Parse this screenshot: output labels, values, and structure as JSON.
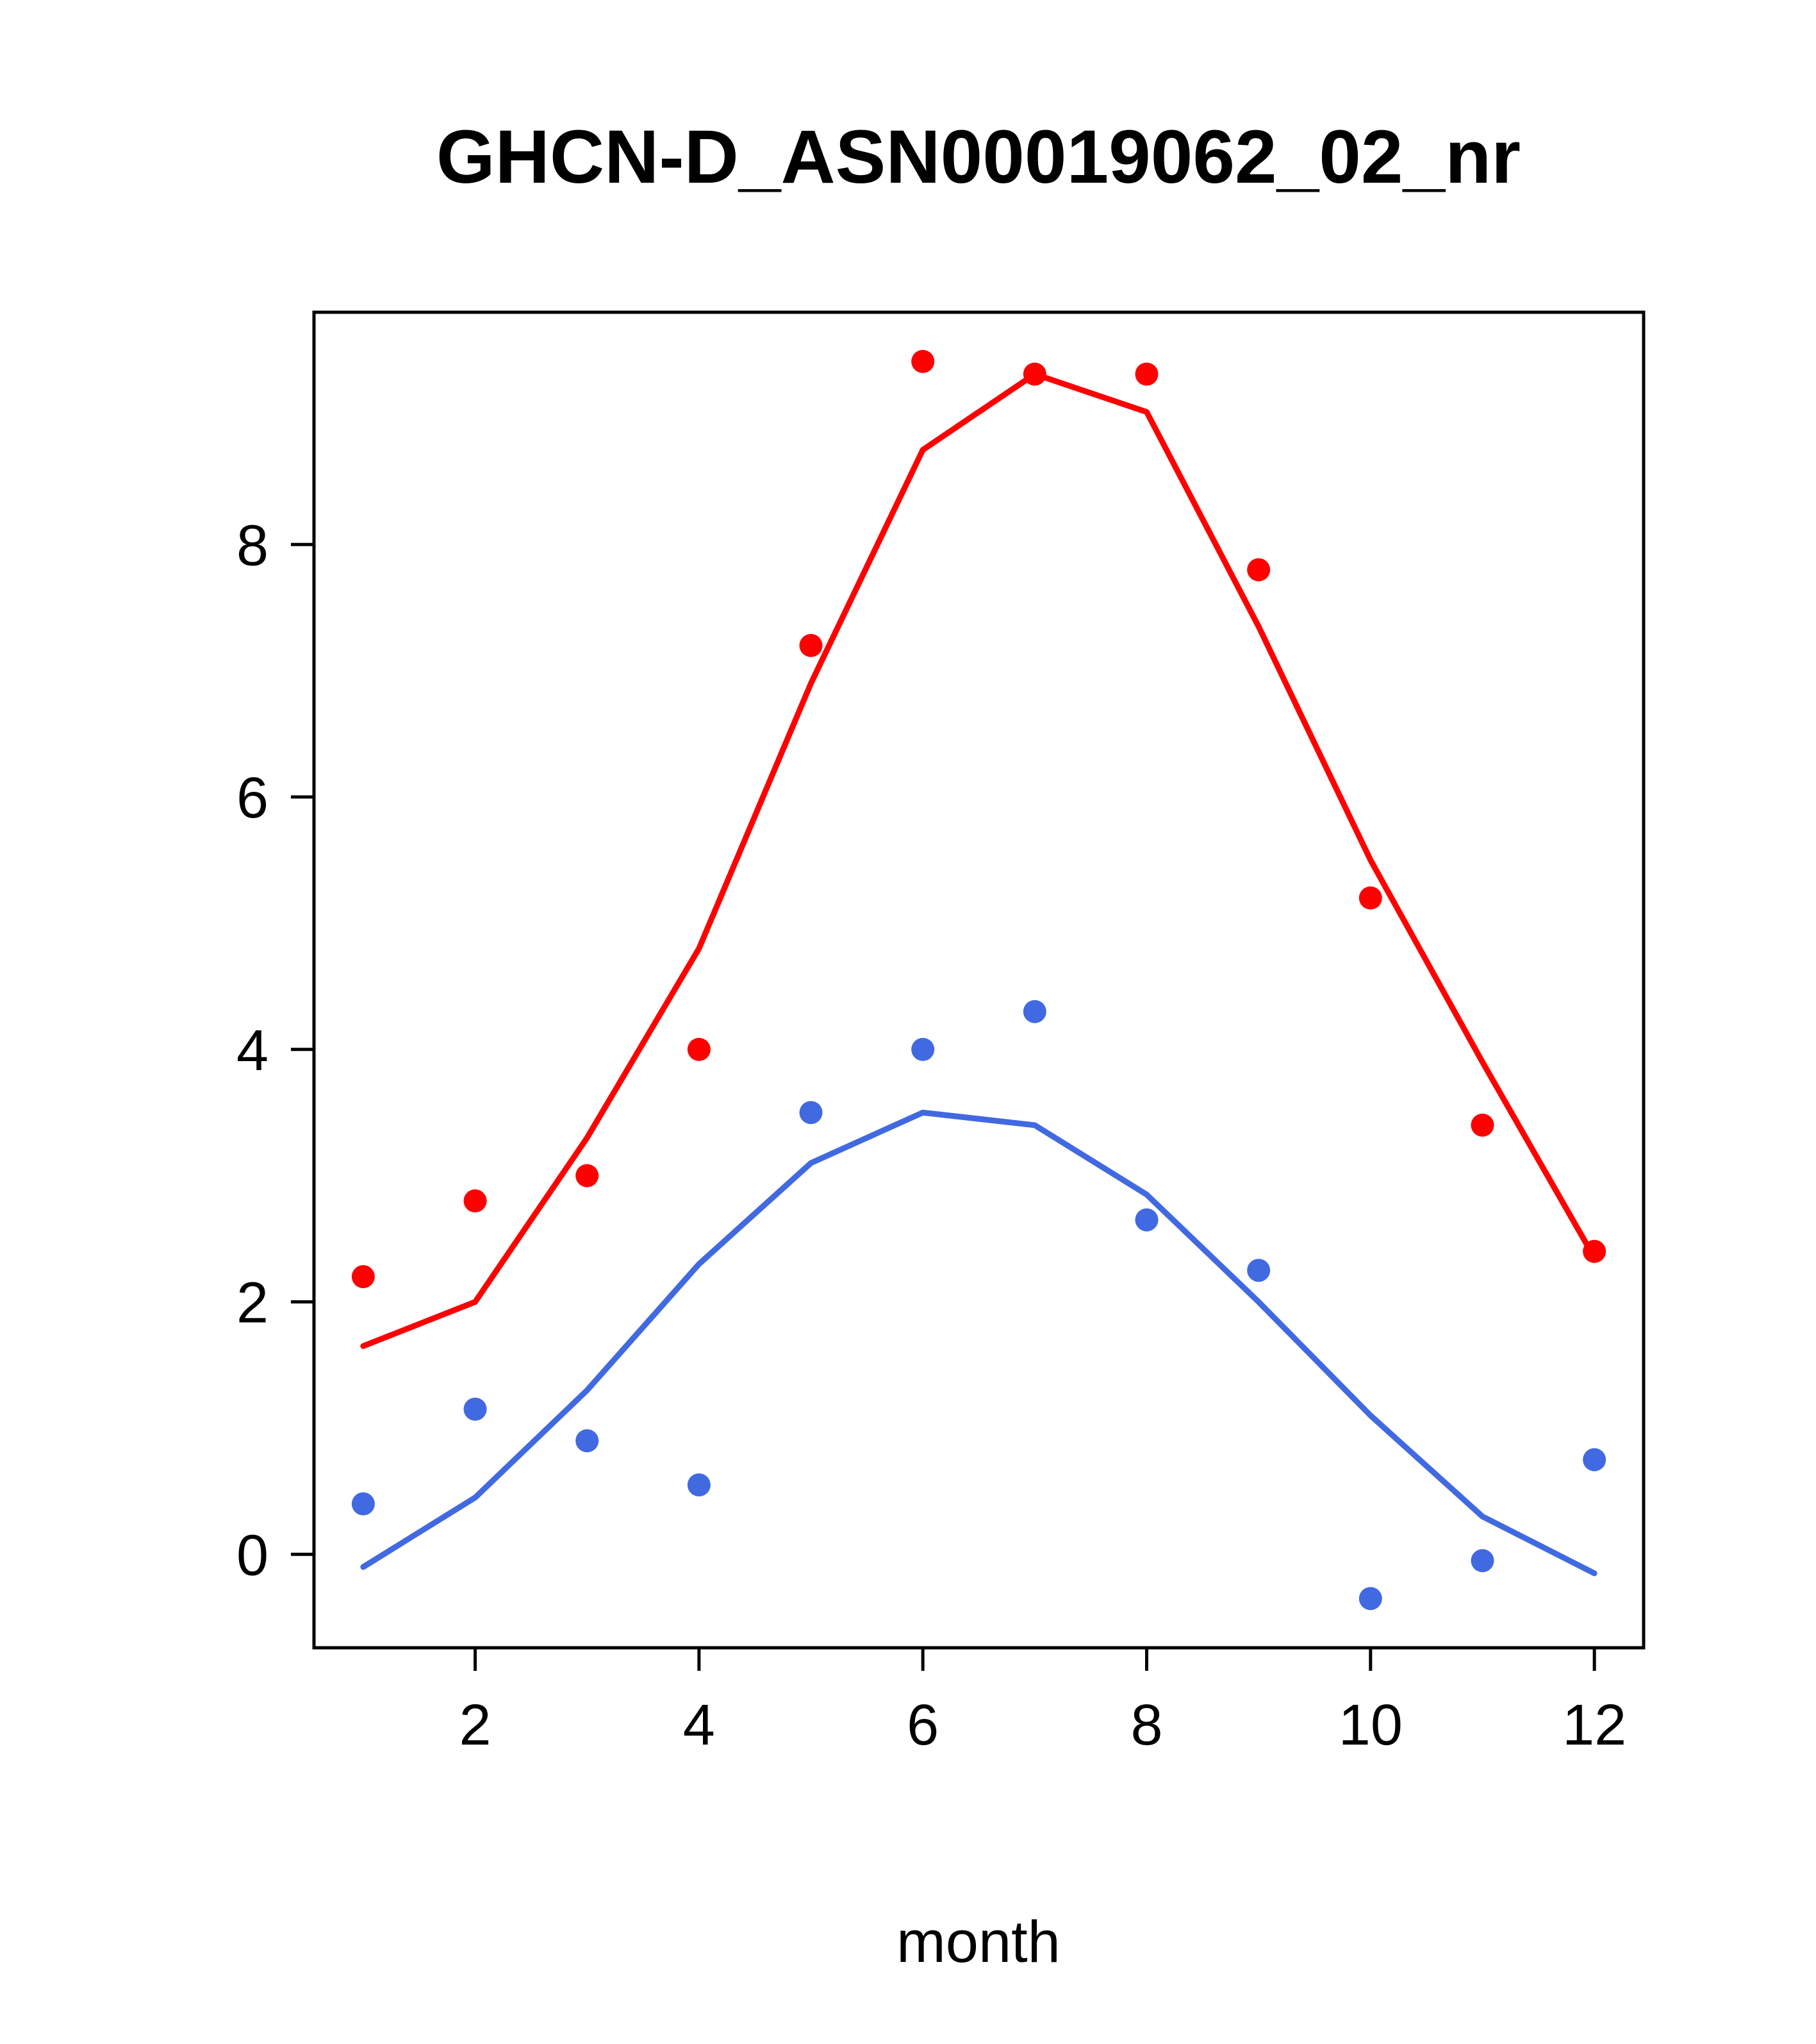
{
  "chart_data": {
    "type": "scatter",
    "title": "GHCN-D_ASN00019062_02_nr",
    "xlabel": "month",
    "ylabel": "",
    "x": [
      1,
      2,
      3,
      4,
      5,
      6,
      7,
      8,
      9,
      10,
      11,
      12
    ],
    "xlim": [
      0.56,
      12.44
    ],
    "ylim": [
      -0.74,
      9.84
    ],
    "x_ticks": [
      2,
      4,
      6,
      8,
      10,
      12
    ],
    "y_ticks": [
      0,
      2,
      4,
      6,
      8
    ],
    "grid": false,
    "legend_position": "none",
    "colors": {
      "red_series": "#ff0000",
      "blue_series": "#4169e1",
      "axis": "#000000"
    },
    "series": [
      {
        "name": "red-points",
        "kind": "points",
        "color_key": "red_series",
        "values": [
          2.2,
          2.8,
          3.0,
          4.0,
          7.2,
          9.45,
          9.35,
          9.35,
          7.8,
          5.2,
          3.4,
          2.4
        ]
      },
      {
        "name": "red-line",
        "kind": "line",
        "color_key": "red_series",
        "values": [
          1.65,
          2.0,
          3.3,
          4.8,
          6.9,
          8.75,
          9.35,
          9.05,
          7.35,
          5.5,
          3.9,
          2.35
        ]
      },
      {
        "name": "blue-points",
        "kind": "points",
        "color_key": "blue_series",
        "values": [
          0.4,
          1.15,
          0.9,
          0.55,
          3.5,
          4.0,
          4.3,
          2.65,
          2.25,
          -0.35,
          -0.05,
          0.75
        ]
      },
      {
        "name": "blue-line",
        "kind": "line",
        "color_key": "blue_series",
        "values": [
          -0.1,
          0.45,
          1.3,
          2.3,
          3.1,
          3.5,
          3.4,
          2.85,
          2.0,
          1.1,
          0.3,
          -0.15
        ]
      }
    ]
  }
}
